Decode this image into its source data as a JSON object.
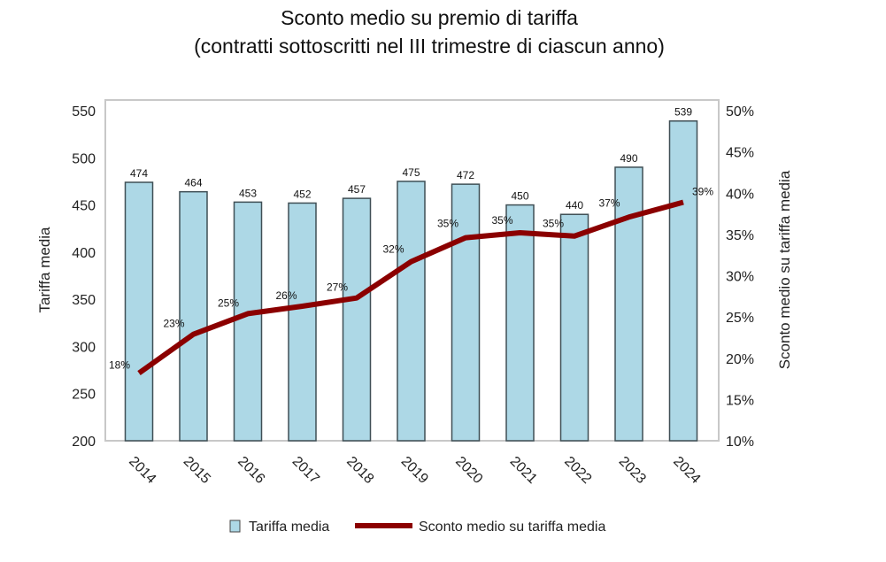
{
  "chart_data": {
    "type": "bar",
    "title": "Sconto medio su premio di tariffa",
    "subtitle": "(contratti sottoscritti nel III trimestre di ciascun anno)",
    "categories": [
      "2014",
      "2015",
      "2016",
      "2017",
      "2018",
      "2019",
      "2020",
      "2021",
      "2022",
      "2023",
      "2024"
    ],
    "series": [
      {
        "name": "Tariffa media",
        "type": "bar",
        "axis": "left",
        "values": [
          474,
          464,
          453,
          452,
          457,
          475,
          472,
          450,
          440,
          490,
          539
        ],
        "labels": [
          "474",
          "464",
          "453",
          "452",
          "457",
          "475",
          "472",
          "450",
          "440",
          "490",
          "539"
        ],
        "color": "#add8e6"
      },
      {
        "name": "Sconto medio su tariffa media",
        "type": "line",
        "axis": "right",
        "values": [
          18.2,
          22.9,
          25.4,
          26.3,
          27.3,
          31.7,
          34.6,
          35.2,
          34.8,
          37.1,
          38.9
        ],
        "labels": [
          "18%",
          "23%",
          "25%",
          "26%",
          "27%",
          "32%",
          "35%",
          "35%",
          "35%",
          "37%",
          "39%"
        ],
        "color": "#8b0000"
      }
    ],
    "ylabel": "Tariffa media",
    "ylabel_right": "Sconto medio su tariffa media",
    "ylim": [
      200,
      550
    ],
    "ylim_right": [
      10,
      50
    ],
    "yticks": [
      "550",
      "500",
      "450",
      "400",
      "350",
      "300",
      "250",
      "200"
    ],
    "yticks_right": [
      "50%",
      "45%",
      "40%",
      "35%",
      "30%",
      "25%",
      "20%",
      "15%",
      "10%"
    ],
    "grid": false,
    "legend_position": "bottom"
  }
}
